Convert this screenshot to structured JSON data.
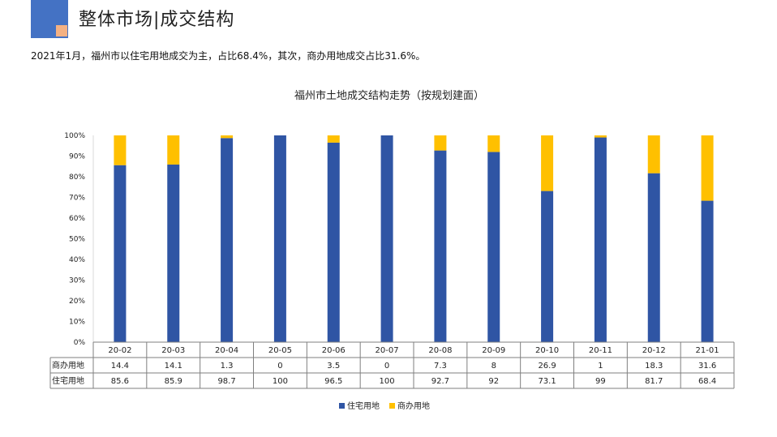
{
  "header": {
    "title": "整体市场|成交结构",
    "summary": "2021年1月，福州市以住宅用地成交为主，占比68.4%，其次，商办用地成交占比31.6%。"
  },
  "chart_data": {
    "type": "bar",
    "stacked": true,
    "title": "福州市土地成交结构走势（按规划建面）",
    "categories": [
      "20-02",
      "20-03",
      "20-04",
      "20-05",
      "20-06",
      "20-07",
      "20-08",
      "20-09",
      "20-10",
      "20-11",
      "20-12",
      "21-01"
    ],
    "series": [
      {
        "name": "住宅用地",
        "color": "#2f55a4",
        "values": [
          85.6,
          85.9,
          98.7,
          100,
          96.5,
          100,
          92.7,
          92,
          73.1,
          99,
          81.7,
          68.4
        ],
        "labels": [
          "85.6",
          "85.9",
          "98.7",
          "100",
          "96.5",
          "100",
          "92.7",
          "92",
          "73.1",
          "99",
          "81.7",
          "68.4"
        ]
      },
      {
        "name": "商办用地",
        "color": "#ffc000",
        "values": [
          14.4,
          14.1,
          1.3,
          0,
          3.5,
          0,
          7.3,
          8,
          26.9,
          1,
          18.3,
          31.6
        ],
        "labels": [
          "14.4",
          "14.1",
          "1.3",
          "0",
          "3.5",
          "0",
          "7.3",
          "8",
          "26.9",
          "1",
          "18.3",
          "31.6"
        ]
      }
    ],
    "yticks": [
      "0%",
      "10%",
      "20%",
      "30%",
      "40%",
      "50%",
      "60%",
      "70%",
      "80%",
      "90%",
      "100%"
    ],
    "ylim": [
      0,
      100
    ],
    "grid": false,
    "legend": "bottom",
    "data_table": true
  }
}
